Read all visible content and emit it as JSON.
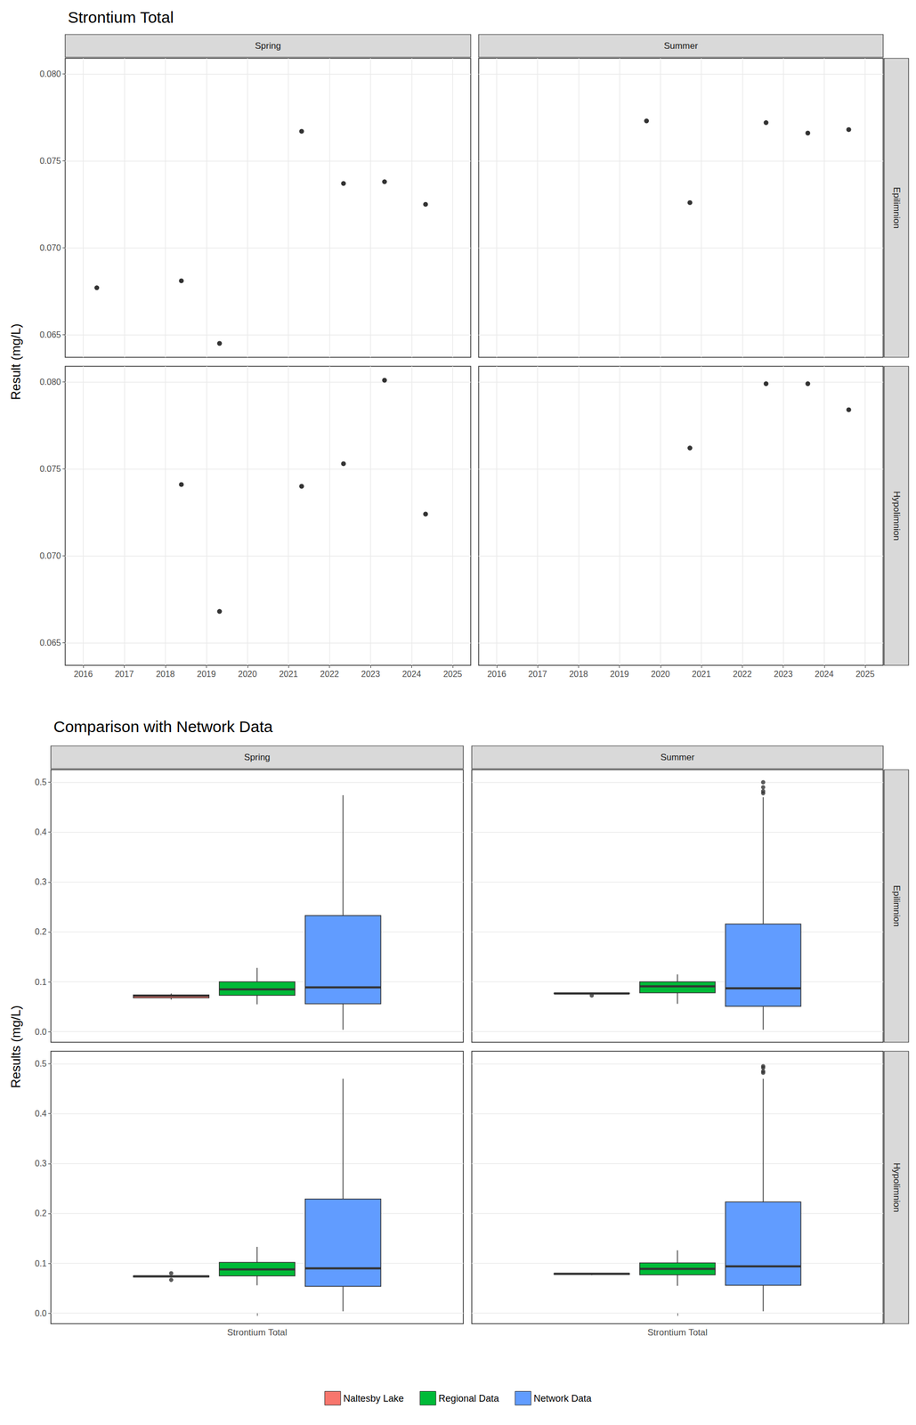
{
  "chart_data": [
    {
      "type": "scatter",
      "title": "Strontium Total",
      "ylabel": "Result (mg/L)",
      "color": "#000000",
      "marker": "circle",
      "grid": true,
      "xlim": [
        2015.56,
        2025.44
      ],
      "xticks": [
        2016,
        2017,
        2018,
        2019,
        2020,
        2021,
        2022,
        2023,
        2024,
        2025
      ],
      "ylim": [
        0.0637,
        0.0809
      ],
      "yticks": [
        0.065,
        {
          "value": 0.07,
          "label": "0.070"
        },
        0.075,
        {
          "value": 0.08,
          "label": "0.080"
        }
      ],
      "panels": [
        {
          "column": "Spring",
          "row": "Epilimnion",
          "x": [
            2016.33,
            2018.39,
            2019.32,
            2021.32,
            2022.34,
            2023.34,
            2024.34
          ],
          "values": [
            0.0677,
            0.0681,
            0.0645,
            0.0767,
            0.0737,
            0.0738,
            0.0725
          ]
        },
        {
          "column": "Summer",
          "row": "Epilimnion",
          "x": [
            2019.66,
            2020.72,
            2022.58,
            2023.6,
            2024.6
          ],
          "values": [
            0.0773,
            0.0726,
            0.0772,
            0.0766,
            0.0768
          ]
        },
        {
          "column": "Spring",
          "row": "Hypolimnion",
          "x": [
            2018.39,
            2019.32,
            2021.32,
            2022.34,
            2023.34,
            2024.34
          ],
          "values": [
            0.0741,
            0.0668,
            0.074,
            0.0753,
            0.0801,
            0.0724
          ]
        },
        {
          "column": "Summer",
          "row": "Hypolimnion",
          "x": [
            2020.72,
            2022.58,
            2023.6,
            2024.6
          ],
          "values": [
            0.0762,
            0.0799,
            0.0799,
            0.0784
          ]
        }
      ]
    },
    {
      "type": "boxplot",
      "title": "Comparison with Network Data",
      "ylabel": "Results (mg/L)",
      "grid": true,
      "legend": "bottom",
      "categories": [
        "Strontium Total"
      ],
      "ylim": [
        -0.021,
        0.525
      ],
      "yticks": [
        {
          "value": 0,
          "label": "0.0"
        },
        0.1,
        0.2,
        0.3,
        0.4,
        0.5
      ],
      "series": [
        {
          "name": "Naltesby Lake",
          "color": "#F8766D"
        },
        {
          "name": "Regional Data",
          "color": "#00BA38"
        },
        {
          "name": "Network Data",
          "color": "#619CFF"
        }
      ],
      "panels": [
        {
          "column": "Spring",
          "row": "Epilimnion",
          "boxes": [
            {
              "min": 0.0645,
              "q1": 0.0679,
              "median": 0.0725,
              "q3": 0.0737,
              "max": 0.0767,
              "outliers": []
            },
            {
              "min": 0.055,
              "q1": 0.073,
              "median": 0.085,
              "q3": 0.1,
              "max": 0.128,
              "outliers": []
            },
            {
              "min": 0.004,
              "q1": 0.056,
              "median": 0.089,
              "q3": 0.233,
              "max": 0.474,
              "outliers": []
            }
          ]
        },
        {
          "column": "Summer",
          "row": "Epilimnion",
          "boxes": [
            {
              "min": 0.0766,
              "q1": 0.0766,
              "median": 0.0768,
              "q3": 0.0773,
              "max": 0.0773,
              "outliers": [
                0.0727
              ]
            },
            {
              "min": 0.056,
              "q1": 0.078,
              "median": 0.091,
              "q3": 0.1,
              "max": 0.115,
              "outliers": []
            },
            {
              "min": 0.004,
              "q1": 0.051,
              "median": 0.087,
              "q3": 0.216,
              "max": 0.47,
              "outliers": [
                0.478,
                0.482,
                0.49,
                0.5
              ]
            }
          ]
        },
        {
          "column": "Spring",
          "row": "Hypolimnion",
          "boxes": [
            {
              "min": 0.0724,
              "q1": 0.0728,
              "median": 0.0741,
              "q3": 0.075,
              "max": 0.0753,
              "outliers": [
                0.0669,
                0.0802
              ]
            },
            {
              "min": 0.056,
              "q1": 0.075,
              "median": 0.088,
              "q3": 0.102,
              "max": 0.133,
              "outliers": []
            },
            {
              "min": 0.004,
              "q1": 0.054,
              "median": 0.09,
              "q3": 0.229,
              "max": 0.47,
              "outliers": []
            }
          ]
        },
        {
          "column": "Summer",
          "row": "Hypolimnion",
          "boxes": [
            {
              "min": 0.0763,
              "q1": 0.0779,
              "median": 0.0792,
              "q3": 0.0799,
              "max": 0.0799,
              "outliers": []
            },
            {
              "min": 0.055,
              "q1": 0.077,
              "median": 0.089,
              "q3": 0.101,
              "max": 0.126,
              "outliers": []
            },
            {
              "min": 0.004,
              "q1": 0.056,
              "median": 0.094,
              "q3": 0.223,
              "max": 0.47,
              "outliers": [
                0.482,
                0.485,
                0.492,
                0.495
              ]
            }
          ]
        }
      ]
    }
  ]
}
